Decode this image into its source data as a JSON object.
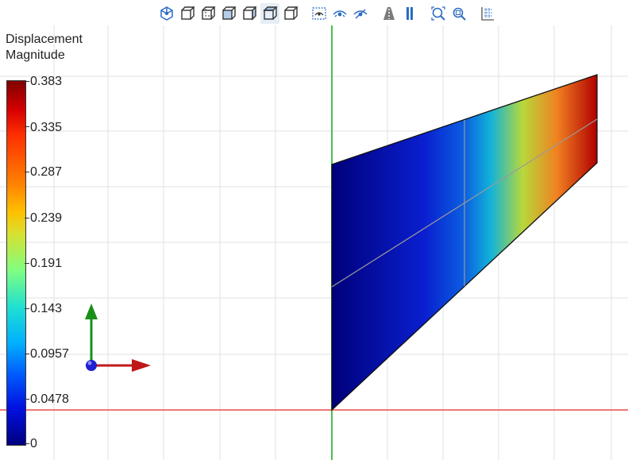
{
  "toolbar": {
    "buttons": [
      {
        "name": "view-isometric-icon"
      },
      {
        "name": "view-front-icon"
      },
      {
        "name": "view-back-icon"
      },
      {
        "name": "view-left-icon"
      },
      {
        "name": "view-right-icon"
      },
      {
        "name": "view-top-icon"
      },
      {
        "name": "view-bottom-icon"
      },
      {
        "name": "hide-grid-icon"
      },
      {
        "name": "show-all-icon"
      },
      {
        "name": "hide-icon"
      },
      {
        "name": "perspective-icon"
      },
      {
        "name": "orthographic-icon"
      },
      {
        "name": "zoom-fit-icon"
      },
      {
        "name": "zoom-box-icon"
      },
      {
        "name": "grid-settings-icon"
      }
    ]
  },
  "legend": {
    "title_line1": "Displacement",
    "title_line2": "Magnitude",
    "ticks": [
      "0.383",
      "0.335",
      "0.287",
      "0.239",
      "0.191",
      "0.143",
      "0.0957",
      "0.0478",
      "0"
    ],
    "colormap": [
      "#00007f",
      "#0010e0",
      "#0060ff",
      "#00b0ff",
      "#20e0d0",
      "#80ff80",
      "#ffc000",
      "#ff8000",
      "#ff3000",
      "#d60000",
      "#800000"
    ]
  },
  "colors": {
    "x_axis": "#e84a4a",
    "y_axis": "#4cbf4c",
    "triad_x": "#c01818",
    "triad_y": "#1a8f1a",
    "triad_z": "#2020d0",
    "grid": "#e2e2e2",
    "accent": "#2b6cc4"
  }
}
